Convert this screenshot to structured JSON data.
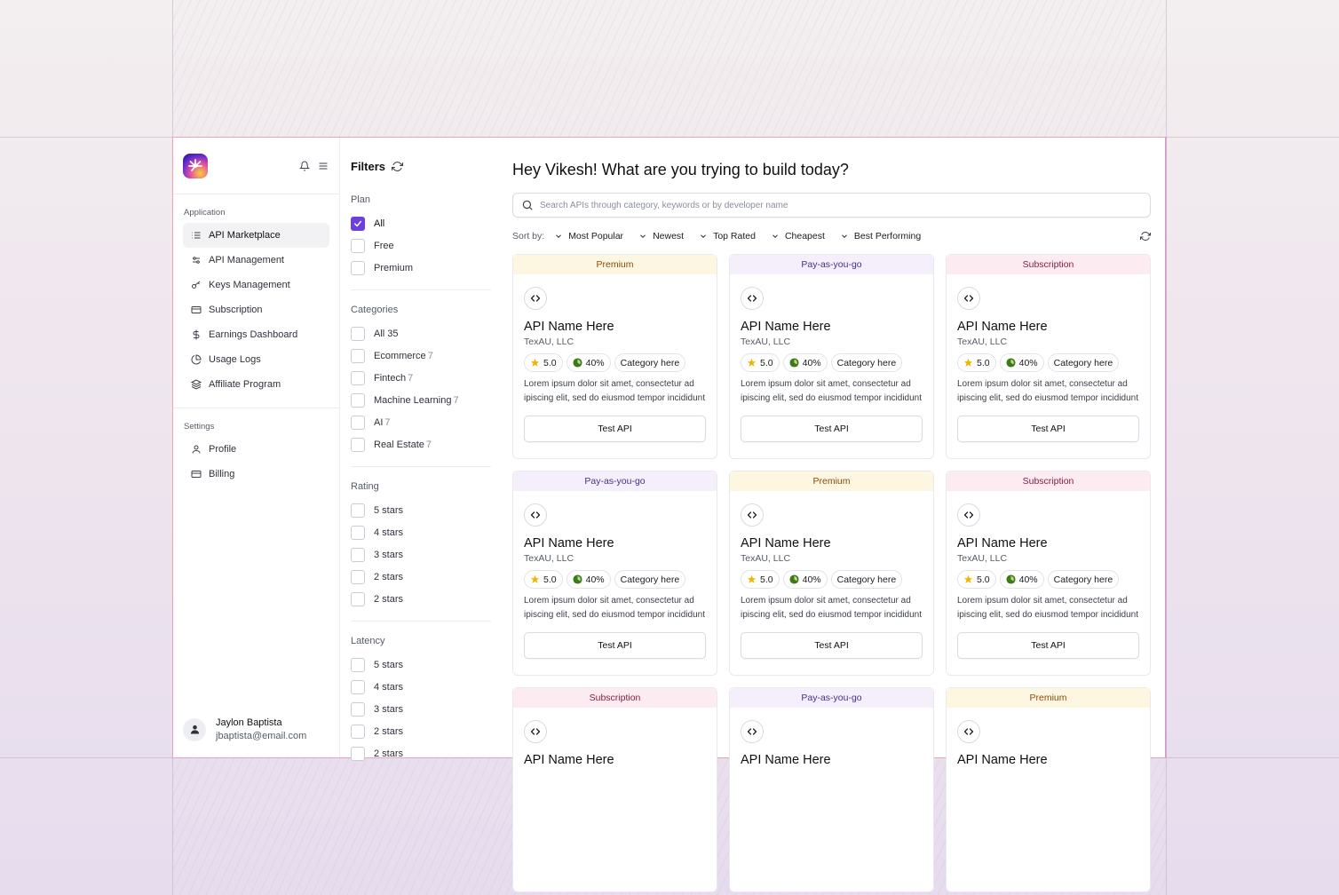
{
  "sidebar": {
    "sections": [
      {
        "label": "Application",
        "items": [
          {
            "label": "API Marketplace",
            "icon": "list-icon",
            "active": true
          },
          {
            "label": "API Management",
            "icon": "sliders-icon",
            "active": false
          },
          {
            "label": "Keys Management",
            "icon": "key-icon",
            "active": false
          },
          {
            "label": "Subscription",
            "icon": "card-icon",
            "active": false
          },
          {
            "label": "Earnings Dashboard",
            "icon": "dollar-icon",
            "active": false
          },
          {
            "label": "Usage Logs",
            "icon": "pie-icon",
            "active": false
          },
          {
            "label": "Affiliate Program",
            "icon": "layers-icon",
            "active": false
          }
        ]
      },
      {
        "label": "Settings",
        "items": [
          {
            "label": "Profile",
            "icon": "user-icon",
            "active": false
          },
          {
            "label": "Billing",
            "icon": "card-icon",
            "active": false
          }
        ]
      }
    ],
    "user": {
      "name": "Jaylon Baptista",
      "email": "jbaptista@email.com"
    }
  },
  "filters": {
    "title": "Filters",
    "groups": [
      {
        "label": "Plan",
        "options": [
          {
            "label": "All",
            "count": "",
            "checked": true
          },
          {
            "label": "Free",
            "count": "",
            "checked": false
          },
          {
            "label": "Premium",
            "count": "",
            "checked": false
          }
        ]
      },
      {
        "label": "Categories",
        "options": [
          {
            "label": "All 35",
            "count": "",
            "checked": false
          },
          {
            "label": "Ecommerce",
            "count": "7",
            "checked": false
          },
          {
            "label": "Fintech",
            "count": "7",
            "checked": false
          },
          {
            "label": "Machine Learning",
            "count": "7",
            "checked": false
          },
          {
            "label": "AI",
            "count": "7",
            "checked": false
          },
          {
            "label": "Real Estate",
            "count": "7",
            "checked": false
          }
        ]
      },
      {
        "label": "Rating",
        "options": [
          {
            "label": "5 stars",
            "count": "",
            "checked": false
          },
          {
            "label": "4 stars",
            "count": "",
            "checked": false
          },
          {
            "label": "3 stars",
            "count": "",
            "checked": false
          },
          {
            "label": "2 stars",
            "count": "",
            "checked": false
          },
          {
            "label": "2 stars",
            "count": "",
            "checked": false
          }
        ]
      },
      {
        "label": "Latency",
        "options": [
          {
            "label": "5 stars",
            "count": "",
            "checked": false
          },
          {
            "label": "4 stars",
            "count": "",
            "checked": false
          },
          {
            "label": "3 stars",
            "count": "",
            "checked": false
          },
          {
            "label": "2 stars",
            "count": "",
            "checked": false
          },
          {
            "label": "2 stars",
            "count": "",
            "checked": false
          }
        ]
      }
    ]
  },
  "main": {
    "greeting": "Hey Vikesh! What are you trying to build today?",
    "search_placeholder": "Search APIs through category, keywords or by developer name",
    "sort_label": "Sort by:",
    "sort_options": [
      "Most Popular",
      "Newest",
      "Top Rated",
      "Cheapest",
      "Best Performing"
    ],
    "cards": [
      {
        "plan": "Premium",
        "plan_type": "premium",
        "name": "API Name Here",
        "org": "TexAU, LLC",
        "rating": "5.0",
        "uptime": "40%",
        "category": "Category here",
        "desc1": "Lorem ipsum dolor sit amet, consectetur ad",
        "desc2": "ipiscing elit, sed do eiusmod tempor incididunt",
        "button": "Test API"
      },
      {
        "plan": "Pay-as-you-go",
        "plan_type": "payg",
        "name": "API Name Here",
        "org": "TexAU, LLC",
        "rating": "5.0",
        "uptime": "40%",
        "category": "Category here",
        "desc1": "Lorem ipsum dolor sit amet, consectetur ad",
        "desc2": "ipiscing elit, sed do eiusmod tempor incididunt",
        "button": "Test API"
      },
      {
        "plan": "Subscription",
        "plan_type": "sub",
        "name": "API Name Here",
        "org": "TexAU, LLC",
        "rating": "5.0",
        "uptime": "40%",
        "category": "Category here",
        "desc1": "Lorem ipsum dolor sit amet, consectetur ad",
        "desc2": "ipiscing elit, sed do eiusmod tempor incididunt",
        "button": "Test API"
      },
      {
        "plan": "Pay-as-you-go",
        "plan_type": "payg",
        "name": "API Name Here",
        "org": "TexAU, LLC",
        "rating": "5.0",
        "uptime": "40%",
        "category": "Category here",
        "desc1": "Lorem ipsum dolor sit amet, consectetur ad",
        "desc2": "ipiscing elit, sed do eiusmod tempor incididunt",
        "button": "Test API"
      },
      {
        "plan": "Premium",
        "plan_type": "premium",
        "name": "API Name Here",
        "org": "TexAU, LLC",
        "rating": "5.0",
        "uptime": "40%",
        "category": "Category here",
        "desc1": "Lorem ipsum dolor sit amet, consectetur ad",
        "desc2": "ipiscing elit, sed do eiusmod tempor incididunt",
        "button": "Test API"
      },
      {
        "plan": "Subscription",
        "plan_type": "sub",
        "name": "API Name Here",
        "org": "TexAU, LLC",
        "rating": "5.0",
        "uptime": "40%",
        "category": "Category here",
        "desc1": "Lorem ipsum dolor sit amet, consectetur ad",
        "desc2": "ipiscing elit, sed do eiusmod tempor incididunt",
        "button": "Test API"
      },
      {
        "plan": "Subscription",
        "plan_type": "sub",
        "name": "API Name Here",
        "org": "",
        "rating": "",
        "uptime": "",
        "category": "",
        "desc1": "",
        "desc2": "",
        "button": ""
      },
      {
        "plan": "Pay-as-you-go",
        "plan_type": "payg",
        "name": "API Name Here",
        "org": "",
        "rating": "",
        "uptime": "",
        "category": "",
        "desc1": "",
        "desc2": "",
        "button": ""
      },
      {
        "plan": "Premium",
        "plan_type": "premium",
        "name": "API Name Here",
        "org": "",
        "rating": "",
        "uptime": "",
        "category": "",
        "desc1": "",
        "desc2": "",
        "button": ""
      }
    ]
  },
  "colors": {
    "accent": "#6c3fe0",
    "star": "#f5b400",
    "uptime": "#3d7a1a"
  }
}
